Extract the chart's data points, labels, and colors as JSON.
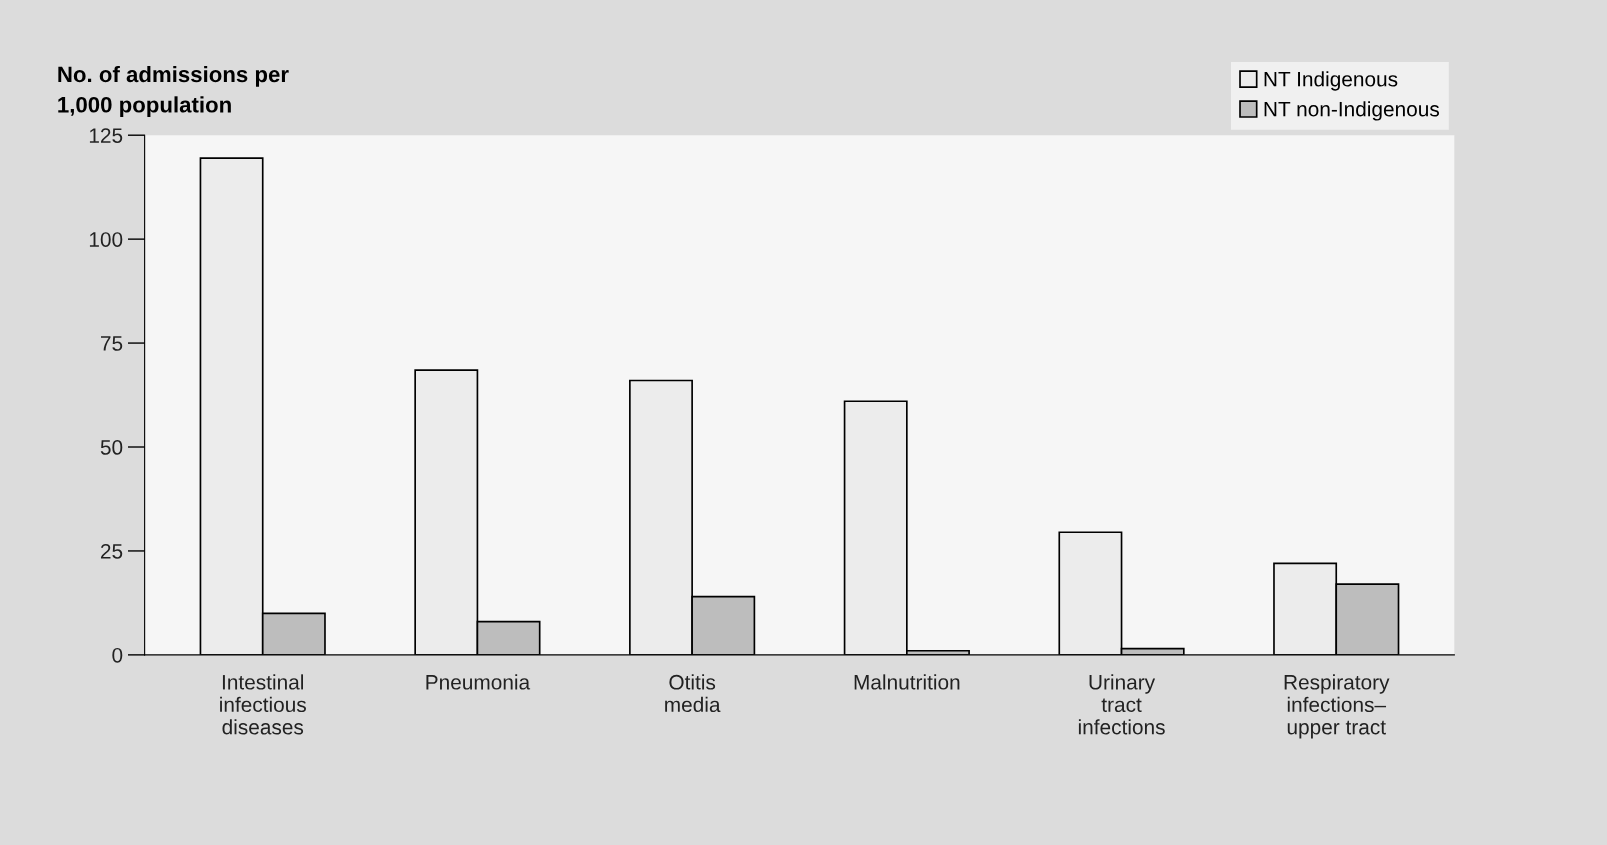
{
  "chart_data": {
    "type": "bar",
    "ylabel": "No. of admissions per\n1,000 population",
    "categories": [
      "Intestinal\ninfectious\ndiseases",
      "Pneumonia",
      "Otitis\nmedia",
      "Malnutrition",
      "Urinary\ntract\ninfections",
      "Respiratory\ninfections–\nupper tract"
    ],
    "series": [
      {
        "name": "NT Indigenous",
        "color": "#ececec",
        "values": [
          119.5,
          68.5,
          66,
          61,
          29.5,
          22
        ]
      },
      {
        "name": "NT non-Indigenous",
        "color": "#bdbdbd",
        "values": [
          10,
          8,
          14,
          1,
          1.5,
          17
        ]
      }
    ],
    "ylim": [
      0,
      125
    ],
    "yticks": [
      0,
      25,
      50,
      75,
      100,
      125
    ],
    "grid": false,
    "legend": "top right"
  }
}
